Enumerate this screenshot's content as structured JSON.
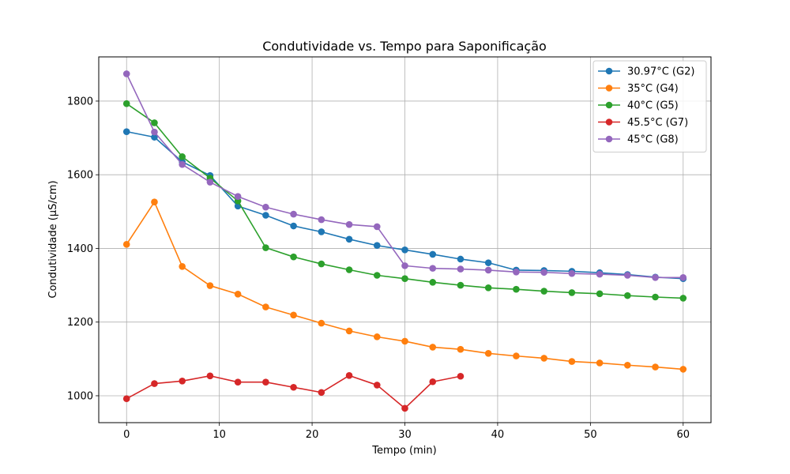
{
  "chart_data": {
    "type": "line",
    "title": "Condutividade vs. Tempo para Saponificação",
    "xlabel": "Tempo (min)",
    "ylabel": "Condutividade (µS/cm)",
    "xlim": [
      -3,
      63
    ],
    "ylim": [
      927,
      1920
    ],
    "xticks": [
      0,
      10,
      20,
      30,
      40,
      50,
      60
    ],
    "yticks": [
      1000,
      1200,
      1400,
      1600,
      1800
    ],
    "grid": true,
    "legend_position": "top-right",
    "series": [
      {
        "name": "30.97°C (G2)",
        "color": "#1f77b4",
        "x": [
          0,
          3,
          6,
          9,
          12,
          15,
          18,
          21,
          24,
          27,
          30,
          33,
          36,
          39,
          42,
          45,
          48,
          51,
          54,
          57,
          60
        ],
        "y": [
          1717,
          1702,
          1635,
          1598,
          1515,
          1490,
          1461,
          1445,
          1425,
          1408,
          1396,
          1384,
          1371,
          1361,
          1341,
          1340,
          1338,
          1334,
          1329,
          1322,
          1318
        ]
      },
      {
        "name": "35°C (G4)",
        "color": "#ff7f0e",
        "x": [
          0,
          3,
          6,
          9,
          12,
          15,
          18,
          21,
          24,
          27,
          30,
          33,
          36,
          39,
          42,
          45,
          48,
          51,
          54,
          57,
          60
        ],
        "y": [
          1411,
          1526,
          1351,
          1299,
          1276,
          1241,
          1219,
          1197,
          1176,
          1160,
          1148,
          1132,
          1126,
          1115,
          1108,
          1102,
          1093,
          1089,
          1083,
          1078,
          1072
        ]
      },
      {
        "name": "40°C (G5)",
        "color": "#2ca02c",
        "x": [
          0,
          3,
          6,
          9,
          12,
          15,
          18,
          21,
          24,
          27,
          30,
          33,
          36,
          39,
          42,
          45,
          48,
          51,
          54,
          57,
          60
        ],
        "y": [
          1793,
          1741,
          1649,
          1591,
          1529,
          1402,
          1377,
          1358,
          1342,
          1327,
          1318,
          1308,
          1300,
          1293,
          1289,
          1284,
          1280,
          1277,
          1272,
          1268,
          1265
        ]
      },
      {
        "name": "45.5°C (G7)",
        "color": "#d62728",
        "x": [
          0,
          3,
          6,
          9,
          12,
          15,
          18,
          21,
          24,
          27,
          30,
          33,
          36
        ],
        "y": [
          992,
          1033,
          1040,
          1054,
          1037,
          1037,
          1023,
          1009,
          1055,
          1029,
          966,
          1038,
          1053
        ]
      },
      {
        "name": "45°C (G8)",
        "color": "#9467bd",
        "x": [
          0,
          3,
          6,
          9,
          12,
          15,
          18,
          21,
          24,
          27,
          30,
          33,
          36,
          39,
          42,
          45,
          48,
          51,
          54,
          57,
          60
        ],
        "y": [
          1874,
          1716,
          1628,
          1580,
          1541,
          1512,
          1493,
          1478,
          1465,
          1459,
          1353,
          1346,
          1344,
          1341,
          1336,
          1335,
          1332,
          1330,
          1327,
          1321,
          1321
        ]
      }
    ]
  }
}
